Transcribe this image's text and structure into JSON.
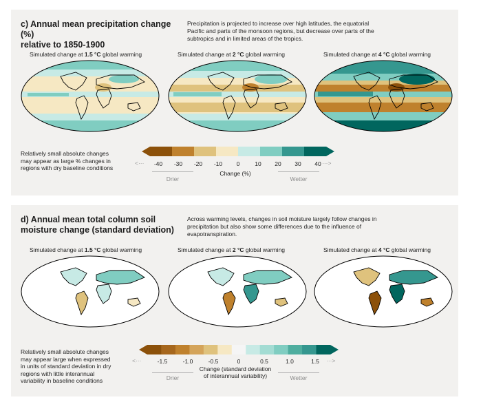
{
  "panel_c": {
    "title_line1": "c) Annual mean precipitation change (%)",
    "title_line2": "relative to 1850-1900",
    "description_lines": [
      "Precipitation is projected to increase over high latitudes, the equatorial",
      "Pacific and parts of the monsoon regions, but decrease over parts of the",
      "subtropics and in limited areas of the tropics."
    ],
    "maps": [
      {
        "prefix": "Simulated change at ",
        "level": "1.5 °C",
        "suffix": " global warming"
      },
      {
        "prefix": "Simulated change at ",
        "level": "2 °C",
        "suffix": " global warming"
      },
      {
        "prefix": "Simulated change at ",
        "level": "4 °C",
        "suffix": " global warming"
      }
    ],
    "note_lines": [
      "Relatively small absolute changes",
      "may appear as large % changes in",
      "regions with dry baseline conditions"
    ],
    "colorbar": {
      "colors": [
        "#8c510a",
        "#bf812d",
        "#dfc27d",
        "#f6e8c3",
        "#c7eae5",
        "#80cdc1",
        "#35978f",
        "#01665e"
      ],
      "left_arrow": "<···",
      "right_arrow": "···>",
      "ticks": [
        "-40",
        "-30",
        "-20",
        "-10",
        "0",
        "10",
        "20",
        "30",
        "40"
      ],
      "title": "Change (%)",
      "drier": "Drier",
      "wetter": "Wetter"
    }
  },
  "panel_d": {
    "title_line1": "d) Annual mean total column soil",
    "title_line2": "moisture change (standard deviation)",
    "description_lines": [
      "Across warming levels, changes in soil moisture largely follow changes in",
      "precipitation but also show some differences due to the influence of",
      "evapotranspiration."
    ],
    "maps": [
      {
        "prefix": "Simulated change at ",
        "level": "1.5 °C",
        "suffix": " global warming"
      },
      {
        "prefix": "Simulated change at ",
        "level": "2 °C",
        "suffix": " global warming"
      },
      {
        "prefix": "Simulated change at ",
        "level": "4 °C",
        "suffix": " global warming"
      }
    ],
    "note_lines": [
      "Relatively small absolute changes",
      "may appear large when expressed",
      "in units of standard deviation in dry",
      "regions with little interannual",
      "variability in baseline conditions"
    ],
    "colorbar": {
      "colors": [
        "#8c510a",
        "#a6671d",
        "#bf812d",
        "#d4a45a",
        "#dfc27d",
        "#f6e8c3",
        "#f5f5f5",
        "#c7eae5",
        "#a3dcd3",
        "#80cdc1",
        "#4fae9f",
        "#35978f",
        "#01665e"
      ],
      "left_arrow": "<···",
      "right_arrow": "···>",
      "ticks": [
        "-1.5",
        "-1.0",
        "-0.5",
        "0",
        "0.5",
        "1.0",
        "1.5"
      ],
      "title_line1": "Change (standard deviation",
      "title_line2": "of interannual variability)",
      "drier": "Drier",
      "wetter": "Wetter"
    }
  }
}
